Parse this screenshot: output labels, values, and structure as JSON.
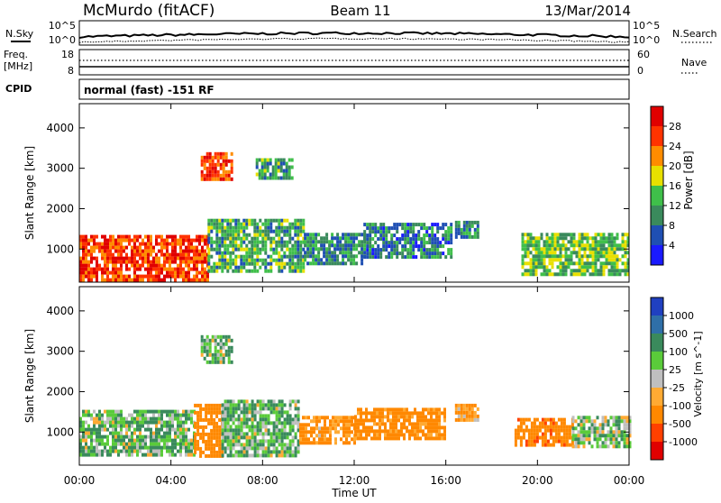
{
  "header": {
    "station": "McMurdo (fitACF)",
    "beam": "Beam 11",
    "date": "13/Mar/2014"
  },
  "panel_labels": {
    "nsky": "N.Sky",
    "nsearch": "N.Search",
    "freq": "Freq.",
    "freq_unit": "[MHz]",
    "nave": "Nave",
    "cpid": "CPID",
    "cpid_value": "normal (fast) -151 RF"
  },
  "ticks": {
    "noise_left": [
      "10^5",
      "10^0"
    ],
    "noise_right": [
      "10^5",
      "10^0"
    ],
    "freq_left": [
      "18",
      "8"
    ],
    "nave_right": [
      "60",
      "0"
    ],
    "range": [
      "1000",
      "2000",
      "3000",
      "4000"
    ],
    "time": [
      "00:00",
      "04:00",
      "08:00",
      "12:00",
      "16:00",
      "20:00",
      "00:00"
    ]
  },
  "axes": {
    "ylabel": "Slant Range [km]",
    "xlabel": "Time UT"
  },
  "colorbars": {
    "power": {
      "label": "Power [dB]",
      "ticks": [
        "4",
        "8",
        "12",
        "16",
        "20",
        "24",
        "28"
      ],
      "colors": [
        "#1a1aff",
        "#1f4fb3",
        "#3a8a5c",
        "#3fbf4a",
        "#e8e000",
        "#ff8c00",
        "#ff3300",
        "#e00000"
      ]
    },
    "velocity": {
      "label": "Velocity [m s^-1]",
      "ticks": [
        "1000",
        "500",
        "100",
        "25",
        "-25",
        "-100",
        "-500",
        "-1000"
      ],
      "colors": [
        "#2040c0",
        "#2f6fa8",
        "#3a8a5c",
        "#5acb3a",
        "#bfbfbf",
        "#ffaa33",
        "#ff8800",
        "#ff4000",
        "#e00000"
      ]
    }
  },
  "chart_data": [
    {
      "type": "heatmap",
      "name": "power",
      "x_range_hours": [
        0,
        24
      ],
      "y_range_km": [
        180,
        4600
      ],
      "colorbar_range_db": [
        0,
        32
      ],
      "patches": [
        {
          "t0": 0.0,
          "t1": 5.6,
          "r0": 250,
          "r1": 1350,
          "v": 26
        },
        {
          "t0": 5.6,
          "t1": 9.8,
          "r0": 450,
          "r1": 1750,
          "v": 12
        },
        {
          "t0": 9.8,
          "t1": 12.4,
          "r0": 650,
          "r1": 1400,
          "v": 10
        },
        {
          "t0": 12.4,
          "t1": 16.2,
          "r0": 800,
          "r1": 1650,
          "v": 9
        },
        {
          "t0": 16.4,
          "t1": 17.4,
          "r0": 1300,
          "r1": 1700,
          "v": 10
        },
        {
          "t0": 5.3,
          "t1": 6.6,
          "r0": 2700,
          "r1": 3400,
          "v": 26
        },
        {
          "t0": 7.7,
          "t1": 9.3,
          "r0": 2750,
          "r1": 3250,
          "v": 12
        },
        {
          "t0": 19.3,
          "t1": 24.0,
          "r0": 400,
          "r1": 1400,
          "v": 14
        }
      ]
    },
    {
      "type": "heatmap",
      "name": "velocity",
      "x_range_hours": [
        0,
        24
      ],
      "y_range_km": [
        180,
        4600
      ],
      "colorbar_range_m_s": [
        -1000,
        1000
      ],
      "patches": [
        {
          "t0": 0.0,
          "t1": 5.0,
          "r0": 450,
          "r1": 1550,
          "v": 80
        },
        {
          "t0": 5.0,
          "t1": 6.2,
          "r0": 400,
          "r1": 1700,
          "v": -300
        },
        {
          "t0": 6.2,
          "t1": 9.6,
          "r0": 450,
          "r1": 1800,
          "v": 90
        },
        {
          "t0": 9.6,
          "t1": 12.0,
          "r0": 700,
          "r1": 1400,
          "v": -150
        },
        {
          "t0": 12.0,
          "t1": 16.0,
          "r0": 800,
          "r1": 1600,
          "v": -200
        },
        {
          "t0": 16.4,
          "t1": 17.4,
          "r0": 1300,
          "r1": 1700,
          "v": -120
        },
        {
          "t0": 5.3,
          "t1": 6.6,
          "r0": 2700,
          "r1": 3400,
          "v": 80
        },
        {
          "t0": 19.0,
          "t1": 21.5,
          "r0": 700,
          "r1": 1350,
          "v": -400
        },
        {
          "t0": 21.5,
          "t1": 24.0,
          "r0": 600,
          "r1": 1400,
          "v": 60
        }
      ]
    }
  ]
}
